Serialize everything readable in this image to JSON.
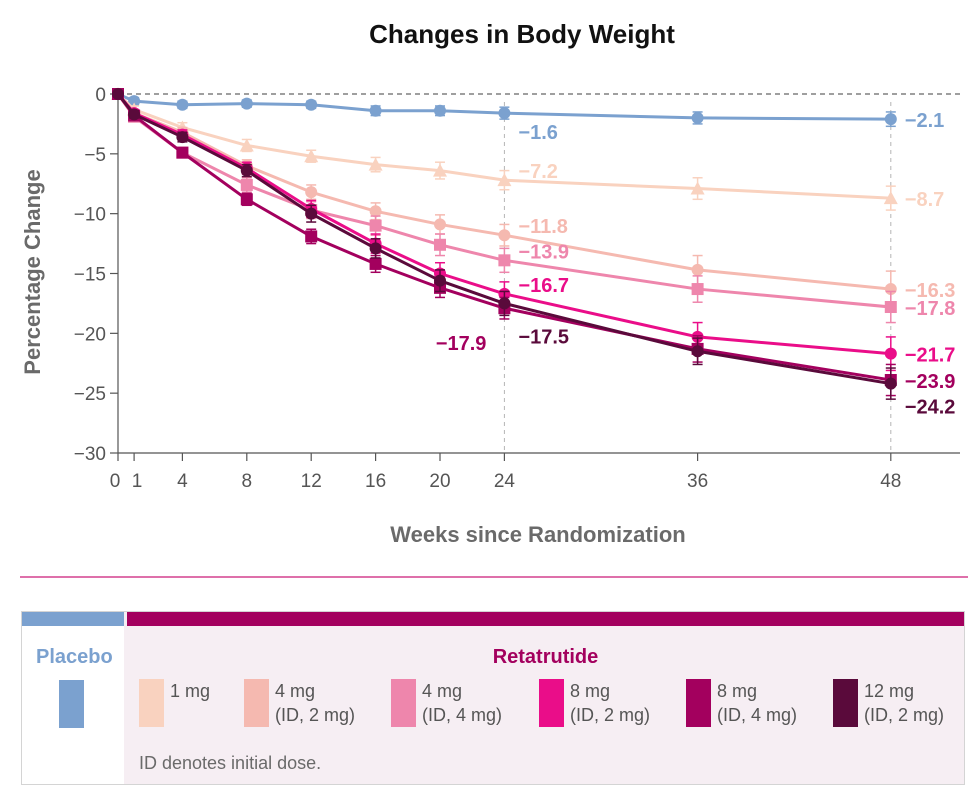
{
  "chart_data": {
    "type": "line",
    "title": "Changes in Body Weight",
    "xlabel": "Weeks since Randomization",
    "ylabel": "Percentage Change",
    "xlim": [
      0,
      52
    ],
    "ylim": [
      -30,
      0
    ],
    "x_ticks": [
      0,
      1,
      4,
      8,
      12,
      16,
      20,
      24,
      36,
      48
    ],
    "x_tick_labels": [
      "0",
      "1",
      "4",
      "8",
      "12",
      "16",
      "20",
      "24",
      "36",
      "48"
    ],
    "y_ticks": [
      0,
      -5,
      -10,
      -15,
      -20,
      -25,
      -30
    ],
    "y_tick_labels": [
      "0",
      "−5",
      "−10",
      "−15",
      "−20",
      "−25",
      "−30"
    ],
    "reference_lines": {
      "y_zero_dashed": true,
      "x_dashed": [
        24,
        48
      ]
    },
    "grid": false,
    "series": [
      {
        "key": "placebo",
        "color": "#7ba1cf",
        "marker": "circle",
        "x": [
          0,
          1,
          4,
          8,
          12,
          16,
          20,
          24,
          36,
          48
        ],
        "y": [
          0,
          -0.6,
          -0.9,
          -0.8,
          -0.9,
          -1.4,
          -1.4,
          -1.6,
          -2.0,
          -2.1
        ],
        "err": [
          0,
          0.3,
          0.3,
          0.3,
          0.3,
          0.4,
          0.4,
          0.5,
          0.5,
          0.6
        ]
      },
      {
        "key": "r1",
        "color": "#f9d2bf",
        "marker": "triangle",
        "x": [
          0,
          1,
          4,
          8,
          12,
          16,
          20,
          24,
          36,
          48
        ],
        "y": [
          0,
          -1.3,
          -2.8,
          -4.3,
          -5.2,
          -5.9,
          -6.4,
          -7.2,
          -7.9,
          -8.7
        ],
        "err": [
          0,
          0.3,
          0.4,
          0.5,
          0.5,
          0.6,
          0.7,
          0.8,
          0.9,
          1.0
        ]
      },
      {
        "key": "r4a",
        "color": "#f5b9b0",
        "marker": "circle",
        "x": [
          0,
          1,
          4,
          8,
          12,
          16,
          20,
          24,
          36,
          48
        ],
        "y": [
          0,
          -1.6,
          -3.2,
          -6.0,
          -8.2,
          -9.8,
          -10.9,
          -11.8,
          -14.7,
          -16.3
        ],
        "err": [
          0,
          0.3,
          0.4,
          0.5,
          0.6,
          0.7,
          0.8,
          0.9,
          1.2,
          1.5
        ]
      },
      {
        "key": "r4b",
        "color": "#ee86ac",
        "marker": "square",
        "x": [
          0,
          1,
          4,
          8,
          12,
          16,
          20,
          24,
          36,
          48
        ],
        "y": [
          0,
          -1.9,
          -4.9,
          -7.6,
          -9.7,
          -11.0,
          -12.6,
          -13.9,
          -16.3,
          -17.8
        ],
        "err": [
          0,
          0.3,
          0.4,
          0.6,
          0.7,
          0.8,
          0.9,
          1.0,
          1.1,
          1.3
        ]
      },
      {
        "key": "r8a",
        "color": "#ea0d89",
        "marker": "circle",
        "x": [
          0,
          1,
          4,
          8,
          12,
          16,
          20,
          24,
          36,
          48
        ],
        "y": [
          0,
          -1.6,
          -3.4,
          -6.2,
          -9.6,
          -12.5,
          -15.0,
          -16.7,
          -20.3,
          -21.7
        ],
        "err": [
          0,
          0.3,
          0.4,
          0.5,
          0.7,
          0.8,
          0.9,
          1.0,
          1.2,
          1.4
        ]
      },
      {
        "key": "r8b",
        "color": "#a3005e",
        "marker": "square",
        "x": [
          0,
          1,
          4,
          8,
          12,
          16,
          20,
          24,
          36,
          48
        ],
        "y": [
          0,
          -1.8,
          -4.9,
          -8.8,
          -11.9,
          -14.2,
          -16.2,
          -17.9,
          -21.3,
          -23.9
        ],
        "err": [
          0,
          0.3,
          0.4,
          0.5,
          0.6,
          0.7,
          0.8,
          0.9,
          1.1,
          1.3
        ]
      },
      {
        "key": "r12",
        "color": "#5a0a3b",
        "marker": "circle",
        "x": [
          0,
          1,
          4,
          8,
          12,
          16,
          20,
          24,
          36,
          48
        ],
        "y": [
          0,
          -1.7,
          -3.6,
          -6.4,
          -10.0,
          -12.9,
          -15.6,
          -17.5,
          -21.5,
          -24.2
        ],
        "err": [
          0,
          0.3,
          0.4,
          0.5,
          0.7,
          0.8,
          0.9,
          1.0,
          1.1,
          1.3
        ]
      }
    ],
    "annotations": [
      {
        "text": "−1.6",
        "x": 24,
        "y": -1.6,
        "color": "#7ba1cf",
        "placement": "below-right"
      },
      {
        "text": "−2.1",
        "x": 48,
        "y": -2.1,
        "color": "#7ba1cf",
        "placement": "right"
      },
      {
        "text": "−7.2",
        "x": 24,
        "y": -7.2,
        "color": "#f9d2bf",
        "placement": "above-right"
      },
      {
        "text": "−8.7",
        "x": 48,
        "y": -8.7,
        "color": "#f9d2bf",
        "placement": "right"
      },
      {
        "text": "−11.8",
        "x": 24,
        "y": -11.8,
        "color": "#f5b9b0",
        "placement": "above-right"
      },
      {
        "text": "−16.3",
        "x": 48,
        "y": -16.3,
        "color": "#f5b9b0",
        "placement": "right"
      },
      {
        "text": "−13.9",
        "x": 24,
        "y": -13.9,
        "color": "#ee86ac",
        "placement": "above-right"
      },
      {
        "text": "−17.8",
        "x": 48,
        "y": -17.8,
        "color": "#ee86ac",
        "placement": "right"
      },
      {
        "text": "−16.7",
        "x": 24,
        "y": -16.7,
        "color": "#ea0d89",
        "placement": "above-right"
      },
      {
        "text": "−21.7",
        "x": 48,
        "y": -21.7,
        "color": "#ea0d89",
        "placement": "right"
      },
      {
        "text": "−17.9",
        "x": 24,
        "y": -17.9,
        "color": "#a3005e",
        "placement": "below-left"
      },
      {
        "text": "−23.9",
        "x": 48,
        "y": -23.9,
        "color": "#a3005e",
        "placement": "right"
      },
      {
        "text": "−17.5",
        "x": 24,
        "y": -17.5,
        "color": "#5a0a3b",
        "placement": "below-right"
      },
      {
        "text": "−24.2",
        "x": 48,
        "y": -24.2,
        "color": "#5a0a3b",
        "placement": "below-right"
      }
    ]
  },
  "legend": {
    "placebo_title": "Placebo",
    "placebo_color": "#7ba1cf",
    "retatrutide_title": "Retatrutide",
    "retatrutide_color": "#a3005e",
    "items": [
      {
        "line1": "1 mg",
        "line2": "",
        "color": "#f9d2bf"
      },
      {
        "line1": "4 mg",
        "line2": "(ID, 2 mg)",
        "color": "#f5b9b0"
      },
      {
        "line1": "4 mg",
        "line2": "(ID, 4 mg)",
        "color": "#ee86ac"
      },
      {
        "line1": "8 mg",
        "line2": "(ID, 2 mg)",
        "color": "#ea0d89"
      },
      {
        "line1": "8 mg",
        "line2": "(ID, 4 mg)",
        "color": "#a3005e"
      },
      {
        "line1": "12 mg",
        "line2": "(ID, 2 mg)",
        "color": "#5a0a3b"
      }
    ],
    "note": "ID denotes initial dose."
  }
}
